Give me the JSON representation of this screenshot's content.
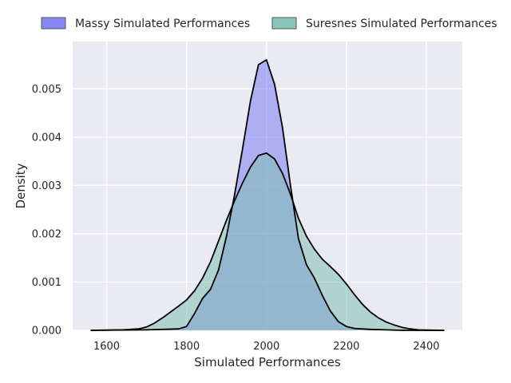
{
  "chart_data": {
    "type": "area",
    "title": "",
    "xlabel": "Simulated Performances",
    "ylabel": "Density",
    "xlim": [
      1515,
      2490
    ],
    "ylim": [
      0,
      0.00598
    ],
    "xticks": [
      1600,
      1800,
      2000,
      2200,
      2400
    ],
    "yticks": [
      0.0,
      0.001,
      0.002,
      0.003,
      0.004,
      0.005
    ],
    "xtick_labels": [
      "1600",
      "1800",
      "2000",
      "2200",
      "2400"
    ],
    "ytick_labels": [
      "0.000",
      "0.001",
      "0.002",
      "0.003",
      "0.004",
      "0.005"
    ],
    "grid": true,
    "legend_position": "top",
    "series": [
      {
        "name": "Massy Simulated Performances",
        "color": "#7b7bf4",
        "x": [
          1560,
          1700,
          1780,
          1800,
          1820,
          1840,
          1860,
          1880,
          1900,
          1920,
          1940,
          1960,
          1980,
          2000,
          2020,
          2040,
          2060,
          2080,
          2100,
          2120,
          2140,
          2160,
          2180,
          2200,
          2220,
          2260,
          2300,
          2340,
          2400,
          2445
        ],
        "values": [
          0,
          1e-05,
          3e-05,
          8e-05,
          0.00035,
          0.00066,
          0.00085,
          0.00125,
          0.00195,
          0.0028,
          0.00375,
          0.00475,
          0.0055,
          0.0056,
          0.0051,
          0.0042,
          0.003,
          0.0019,
          0.00136,
          0.00108,
          0.00072,
          0.0004,
          0.00018,
          8e-05,
          4e-05,
          2e-05,
          1e-05,
          0,
          0,
          0
        ]
      },
      {
        "name": "Suresnes Simulated Performances",
        "color": "#7fbfb2",
        "x": [
          1560,
          1640,
          1680,
          1700,
          1720,
          1740,
          1760,
          1780,
          1800,
          1820,
          1840,
          1860,
          1880,
          1900,
          1920,
          1940,
          1960,
          1980,
          2000,
          2020,
          2040,
          2060,
          2080,
          2100,
          2120,
          2140,
          2160,
          2180,
          2200,
          2220,
          2240,
          2260,
          2280,
          2300,
          2320,
          2340,
          2360,
          2380,
          2400,
          2445
        ],
        "values": [
          0,
          1e-05,
          3e-05,
          7e-05,
          0.00015,
          0.00026,
          0.00038,
          0.0005,
          0.00063,
          0.00082,
          0.00108,
          0.00142,
          0.00185,
          0.00228,
          0.00268,
          0.00305,
          0.00338,
          0.00362,
          0.00367,
          0.00355,
          0.00325,
          0.00282,
          0.00232,
          0.00195,
          0.00168,
          0.00147,
          0.00132,
          0.00116,
          0.00096,
          0.00074,
          0.00054,
          0.00038,
          0.00026,
          0.00017,
          0.00011,
          6e-05,
          3e-05,
          1e-05,
          5e-06,
          0
        ]
      }
    ]
  }
}
